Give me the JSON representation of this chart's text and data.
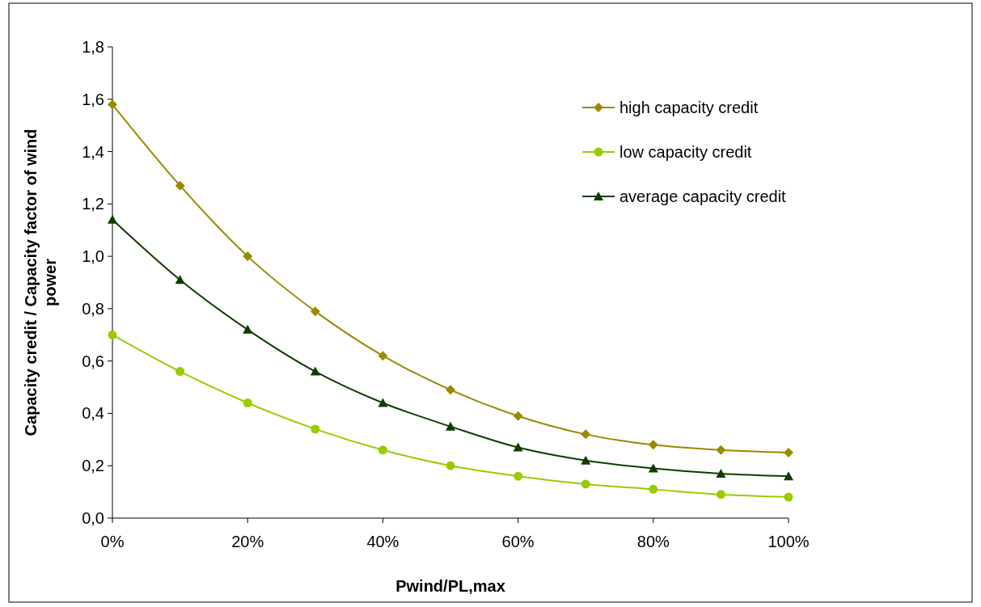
{
  "chart_data": {
    "type": "line",
    "xlabel": "Pwind/PL,max",
    "ylabel": "Capacity credit / Capacity factor of wind power",
    "x": [
      0,
      10,
      20,
      30,
      40,
      50,
      60,
      70,
      80,
      90,
      100
    ],
    "xlim": [
      0,
      100
    ],
    "xticks": [
      {
        "value": 0,
        "label": "0%"
      },
      {
        "value": 20,
        "label": "20%"
      },
      {
        "value": 40,
        "label": "40%"
      },
      {
        "value": 60,
        "label": "60%"
      },
      {
        "value": 80,
        "label": "80%"
      },
      {
        "value": 100,
        "label": "100%"
      }
    ],
    "ylim": [
      0,
      1.8
    ],
    "yticks": [
      {
        "value": 0,
        "label": "0,0"
      },
      {
        "value": 0.2,
        "label": "0,2"
      },
      {
        "value": 0.4,
        "label": "0,4"
      },
      {
        "value": 0.6,
        "label": "0,6"
      },
      {
        "value": 0.8,
        "label": "0,8"
      },
      {
        "value": 1.0,
        "label": "1,0"
      },
      {
        "value": 1.2,
        "label": "1,2"
      },
      {
        "value": 1.4,
        "label": "1,4"
      },
      {
        "value": 1.6,
        "label": "1,6"
      },
      {
        "value": 1.8,
        "label": "1,8"
      }
    ],
    "grid": false,
    "legend": "top right",
    "line_style": "solid",
    "series": [
      {
        "name": "high capacity credit",
        "color": "#998a00",
        "marker": "diamond",
        "values": [
          1.58,
          1.27,
          1.0,
          0.79,
          0.62,
          0.49,
          0.39,
          0.32,
          0.28,
          0.26,
          0.25
        ]
      },
      {
        "name": "low capacity credit",
        "color": "#99cc00",
        "marker": "circle",
        "values": [
          0.7,
          0.56,
          0.44,
          0.34,
          0.26,
          0.2,
          0.16,
          0.13,
          0.11,
          0.09,
          0.08
        ]
      },
      {
        "name": "average capacity credit",
        "color": "#0f3d00",
        "marker": "triangle",
        "values": [
          1.14,
          0.91,
          0.72,
          0.56,
          0.44,
          0.35,
          0.27,
          0.22,
          0.19,
          0.17,
          0.16
        ]
      }
    ]
  }
}
